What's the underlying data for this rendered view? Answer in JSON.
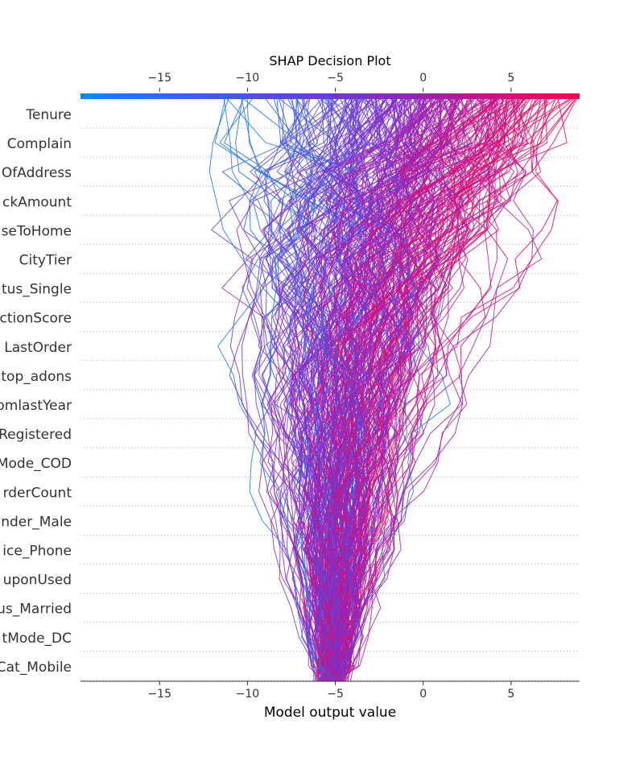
{
  "chart_data": {
    "type": "line",
    "title": "SHAP Decision Plot",
    "xlabel": "Model output value",
    "ylabel": "",
    "xlim": [
      -19.5,
      8.9
    ],
    "xticks": [
      -15,
      -10,
      -5,
      0,
      5
    ],
    "features": [
      "Tenure",
      "Complain",
      "NumberOfAddress",
      "CashbackAmount",
      "WarehouseToHome",
      "CityTier",
      "MaritalStatus_Single",
      "SatisfactionScore",
      "DaySinceLastOrder",
      "Laptop_adons",
      "OrderAmountHikeFromlastYear",
      "NumberOfDeviceRegistered",
      "PreferredPaymentMode_COD",
      "OrderCount",
      "Gender_Male",
      "PreferredLoginDevice_Phone",
      "CouponUsed",
      "MaritalStatus_Married",
      "PreferredPaymentMode_DC",
      "PreferedOrderCat_Mobile"
    ],
    "features_visible_text": [
      "Tenure",
      "Complain",
      "OfAddress",
      "ckAmount",
      "seToHome",
      "CityTier",
      "tus_Single",
      "ctionScore",
      "LastOrder",
      "top_adons",
      "omlastYear",
      "Registered",
      "Mode_COD",
      "rderCount",
      "nder_Male",
      "ice_Phone",
      "uponUsed",
      "us_Married",
      "tMode_DC",
      "Cat_Mobile"
    ],
    "base_value": -5.2,
    "output_range": [
      -13,
      8.9
    ],
    "colormap": [
      "#008bfb",
      "#ff0052"
    ],
    "grid": "dotted horizontal",
    "legend": "none (colorbar on top axis)"
  }
}
